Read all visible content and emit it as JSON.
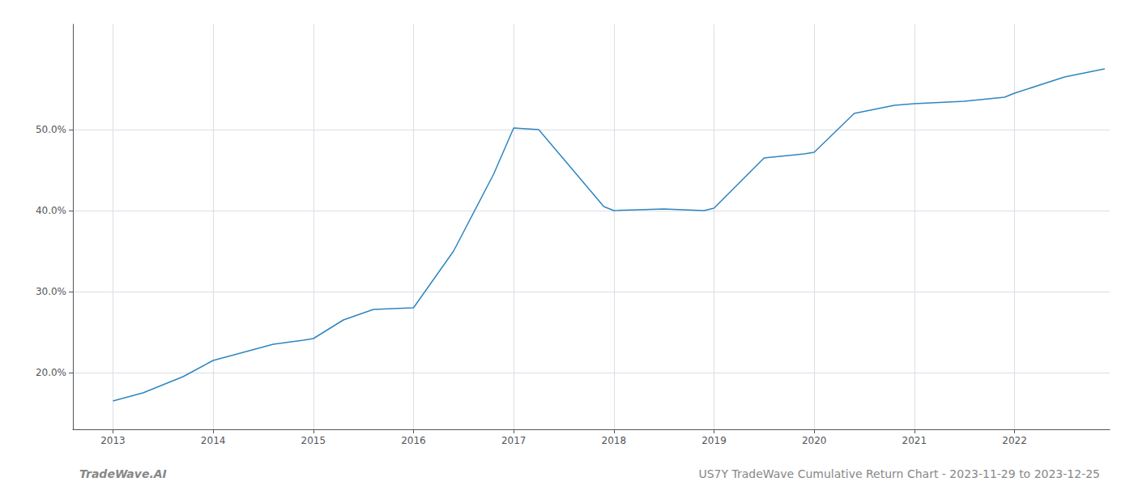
{
  "chart_data": {
    "type": "line",
    "x": [
      2013.0,
      2013.3,
      2013.7,
      2014.0,
      2014.3,
      2014.6,
      2014.9,
      2015.0,
      2015.3,
      2015.6,
      2016.0,
      2016.4,
      2016.8,
      2017.0,
      2017.25,
      2017.9,
      2018.0,
      2018.5,
      2018.9,
      2019.0,
      2019.5,
      2019.9,
      2020.0,
      2020.4,
      2020.8,
      2021.0,
      2021.5,
      2021.9,
      2022.0,
      2022.5,
      2022.9
    ],
    "values": [
      16.5,
      17.5,
      19.5,
      21.5,
      22.5,
      23.5,
      24.0,
      24.2,
      26.5,
      27.8,
      28.0,
      35.0,
      44.5,
      50.2,
      50.0,
      40.5,
      40.0,
      40.2,
      40.0,
      40.3,
      46.5,
      47.0,
      47.2,
      52.0,
      53.0,
      53.2,
      53.5,
      54.0,
      54.5,
      56.5,
      57.5
    ],
    "color": "#2e86c1",
    "xlim": [
      2012.6,
      2022.95
    ],
    "xticks": [
      2013,
      2014,
      2015,
      2016,
      2017,
      2018,
      2019,
      2020,
      2021,
      2022
    ],
    "ylim": [
      13.0,
      63.0
    ],
    "yticks": [
      {
        "value": 20.0,
        "label": "20.0%"
      },
      {
        "value": 30.0,
        "label": "30.0%"
      },
      {
        "value": 40.0,
        "label": "40.0%"
      },
      {
        "value": 50.0,
        "label": "50.0%"
      }
    ],
    "grid": true,
    "annotations": [
      "TradeWave.AI",
      "US7Y TradeWave Cumulative Return Chart - 2023-11-29 to 2023-12-25"
    ]
  }
}
